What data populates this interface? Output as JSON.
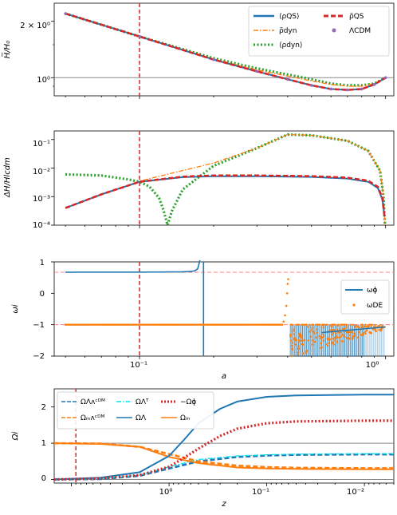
{
  "chart_data": [
    {
      "type": "line",
      "panel": 1,
      "xscale": "log",
      "xlim": [
        0.045,
        1.08
      ],
      "ylabel": "H̅/H₀",
      "yscale": "log",
      "ylim": [
        0.8,
        2.5
      ],
      "ytick_labels": [
        "2 × 10⁰",
        "10⁰"
      ],
      "vline": 0.1,
      "hline": 1.0,
      "legend_position": "top-right",
      "series": [
        {
          "name": "⟨ρQS⟩",
          "color": "#1f77b4",
          "style": "solid",
          "x": [
            0.05,
            0.1,
            0.2,
            0.3,
            0.4,
            0.5,
            0.6,
            0.7,
            0.8,
            0.9,
            1.0
          ],
          "y": [
            2.2,
            1.66,
            1.25,
            1.08,
            0.98,
            0.91,
            0.87,
            0.86,
            0.87,
            0.92,
            1.0
          ]
        },
        {
          "name": "ρ̃dyn",
          "color": "#ff7f0e",
          "style": "dashdot",
          "x": [
            0.05,
            0.1,
            0.2,
            0.3,
            0.4,
            0.5,
            0.6,
            0.7,
            0.8,
            0.9,
            1.0
          ],
          "y": [
            2.2,
            1.66,
            1.26,
            1.1,
            1.02,
            0.96,
            0.92,
            0.9,
            0.9,
            0.93,
            1.0
          ]
        },
        {
          "name": "⟨ρdyn⟩",
          "color": "#2ca02c",
          "style": "dotted",
          "x": [
            0.05,
            0.1,
            0.2,
            0.3,
            0.4,
            0.5,
            0.6,
            0.7,
            0.8,
            0.9,
            1.0
          ],
          "y": [
            2.2,
            1.66,
            1.27,
            1.12,
            1.04,
            0.98,
            0.93,
            0.91,
            0.91,
            0.93,
            1.0
          ]
        },
        {
          "name": "ρ̃QS",
          "color": "#d62728",
          "style": "dashed",
          "x": [
            0.05,
            0.1,
            0.2,
            0.3,
            0.4,
            0.5,
            0.6,
            0.7,
            0.8,
            0.9,
            1.0
          ],
          "y": [
            2.2,
            1.66,
            1.25,
            1.08,
            0.98,
            0.91,
            0.87,
            0.86,
            0.87,
            0.92,
            1.0
          ]
        },
        {
          "name": "ΛCDM",
          "color": "#9467bd",
          "style": "points",
          "x": [
            0.05,
            0.1,
            0.2,
            0.3,
            0.4,
            0.5,
            0.6,
            0.7,
            0.8,
            0.9,
            1.0
          ],
          "y": [
            2.2,
            1.66,
            1.25,
            1.08,
            0.98,
            0.91,
            0.87,
            0.86,
            0.87,
            0.92,
            1.0
          ]
        }
      ]
    },
    {
      "type": "line",
      "panel": 2,
      "xscale": "log",
      "xlim": [
        0.045,
        1.08
      ],
      "ylabel": "ΔH/Hlcdm",
      "yscale": "log",
      "ylim": [
        0.0001,
        0.2
      ],
      "ytick_labels": [
        "10⁻¹",
        "10⁻²",
        "10⁻³",
        "10⁻⁴"
      ],
      "vline": 0.1,
      "series": [
        {
          "name": "⟨ρQS⟩",
          "color": "#1f77b4",
          "style": "solid",
          "x": [
            0.05,
            0.07,
            0.1,
            0.15,
            0.2,
            0.3,
            0.5,
            0.7,
            0.85,
            0.93,
            0.97,
            0.99
          ],
          "y": [
            0.0004,
            0.0012,
            0.0033,
            0.0048,
            0.0052,
            0.0052,
            0.0049,
            0.0043,
            0.0033,
            0.002,
            0.0008,
            0.0002
          ]
        },
        {
          "name": "ρ̃QS",
          "color": "#d62728",
          "style": "dashed",
          "x": [
            0.05,
            0.07,
            0.1,
            0.15,
            0.2,
            0.3,
            0.5,
            0.7,
            0.85,
            0.93,
            0.97,
            0.99
          ],
          "y": [
            0.0004,
            0.0012,
            0.0033,
            0.005,
            0.0055,
            0.0055,
            0.0052,
            0.0046,
            0.0036,
            0.0022,
            0.0009,
            0.0002
          ]
        },
        {
          "name": "ρ̃dyn",
          "color": "#ff7f0e",
          "style": "dashdot",
          "x": [
            0.05,
            0.1,
            0.2,
            0.3,
            0.4,
            0.5,
            0.7,
            0.85,
            0.95,
            0.98,
            0.995
          ],
          "y": [
            0.0004,
            0.0035,
            0.015,
            0.05,
            0.15,
            0.14,
            0.09,
            0.04,
            0.008,
            0.001,
            0.0001
          ]
        },
        {
          "name": "⟨ρdyn⟩",
          "color": "#2ca02c",
          "style": "dotted",
          "x": [
            0.05,
            0.07,
            0.09,
            0.1,
            0.11,
            0.12,
            0.125,
            0.13,
            0.135,
            0.15,
            0.2,
            0.3,
            0.4,
            0.5,
            0.7,
            0.85,
            0.95,
            0.98,
            0.995
          ],
          "y": [
            0.006,
            0.0055,
            0.004,
            0.0033,
            0.0022,
            0.0009,
            0.00035,
            0.0001,
            0.0003,
            0.0018,
            0.012,
            0.05,
            0.15,
            0.14,
            0.09,
            0.04,
            0.008,
            0.001,
            0.0001
          ]
        }
      ]
    },
    {
      "type": "line",
      "panel": 3,
      "xscale": "log",
      "xlim": [
        0.045,
        1.08
      ],
      "xlabel": "a",
      "xtick_labels": [
        "10⁻¹",
        "10⁰"
      ],
      "ylabel": "ωi",
      "ylim": [
        -2,
        1
      ],
      "ytick_labels": [
        "1",
        "0",
        "−1",
        "−2"
      ],
      "vline": 0.1,
      "hlines": [
        0.67,
        -1.0
      ],
      "legend_position": "center-right",
      "series": [
        {
          "name": "ωϕ",
          "color": "#1f77b4",
          "style": "solid"
        },
        {
          "name": "ωDE",
          "color": "#ff7f0e",
          "style": "points"
        }
      ]
    },
    {
      "type": "line",
      "panel": 4,
      "xscale": "log",
      "xaxis": "z decreasing to the right",
      "xlim": [
        15,
        0.005
      ],
      "xlabel": "z",
      "xtick_labels": [
        "10⁰",
        "10⁻¹",
        "10⁻²"
      ],
      "ylabel": "Ωi",
      "ylim": [
        -0.1,
        2.5
      ],
      "ytick_labels": [
        "0",
        "1",
        "2"
      ],
      "vline": 9,
      "hlines": [
        0,
        1
      ],
      "legend_position": "top-left",
      "series": [
        {
          "name": "ΩΛᴧᶜᴰᴹ",
          "color": "#1f77b4",
          "style": "dashed",
          "x": [
            15,
            5,
            2,
            1,
            0.5,
            0.2,
            0.1,
            0.05,
            0.01,
            0.005
          ],
          "y": [
            0.001,
            0.01,
            0.1,
            0.3,
            0.5,
            0.62,
            0.66,
            0.68,
            0.69,
            0.69
          ]
        },
        {
          "name": "Ωₘᴧᶜᴰᴹ",
          "color": "#ff7f0e",
          "style": "dashed",
          "x": [
            15,
            5,
            2,
            1,
            0.5,
            0.2,
            0.1,
            0.05,
            0.01,
            0.005
          ],
          "y": [
            1.0,
            0.99,
            0.9,
            0.7,
            0.5,
            0.38,
            0.34,
            0.32,
            0.31,
            0.31
          ]
        },
        {
          "name": "ΩΛᵀ",
          "color": "#00e5ee",
          "style": "dashdot",
          "x": [
            15,
            5,
            2,
            1,
            0.5,
            0.2,
            0.1,
            0.05,
            0.01,
            0.005
          ],
          "y": [
            0.0,
            0.02,
            0.12,
            0.35,
            0.55,
            0.65,
            0.68,
            0.7,
            0.71,
            0.71
          ]
        },
        {
          "name": "ΩΛ",
          "color": "#1f77b4",
          "style": "solid",
          "x": [
            15,
            5,
            2,
            1,
            0.7,
            0.5,
            0.3,
            0.2,
            0.1,
            0.05,
            0.01,
            0.005
          ],
          "y": [
            0.0,
            0.05,
            0.2,
            0.65,
            1.1,
            1.55,
            1.95,
            2.15,
            2.28,
            2.32,
            2.34,
            2.34
          ]
        },
        {
          "name": "−Ωϕ",
          "color": "#d62728",
          "style": "dotted",
          "x": [
            15,
            5,
            2,
            1,
            0.7,
            0.5,
            0.3,
            0.2,
            0.1,
            0.05,
            0.01,
            0.005
          ],
          "y": [
            0.0,
            0.03,
            0.12,
            0.35,
            0.6,
            0.85,
            1.2,
            1.4,
            1.55,
            1.6,
            1.62,
            1.62
          ]
        },
        {
          "name": "Ωₘ",
          "color": "#ff7f0e",
          "style": "solid",
          "x": [
            15,
            5,
            2,
            1,
            0.5,
            0.2,
            0.1,
            0.05,
            0.01,
            0.005
          ],
          "y": [
            1.0,
            0.98,
            0.9,
            0.62,
            0.45,
            0.33,
            0.3,
            0.29,
            0.28,
            0.28
          ]
        }
      ]
    }
  ]
}
